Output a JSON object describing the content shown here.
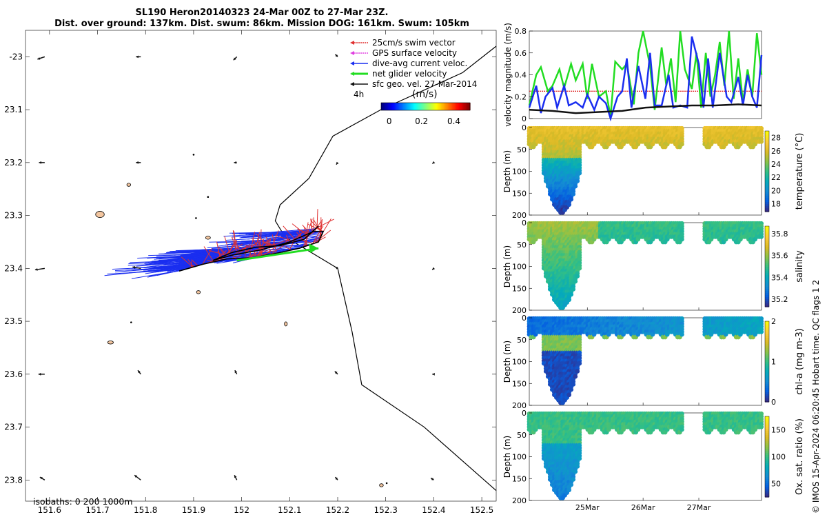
{
  "header": {
    "title_line1": "SL190 Heron20140323 24-Mar 00Z to 27-Mar 23Z.",
    "title_line2": "Dist. over ground: 137km. Dist. swum: 86km. Mission DOG: 161km. Swum: 105km"
  },
  "credit": "© IMOS 15-Apr-2024 06:20:45 Hobart time. QC flags 1  2",
  "colors": {
    "swim": "#e03030",
    "gps": "#e040e0",
    "current": "#1a2ef0",
    "net": "#22dd22",
    "geo": "#111111",
    "island": "#f3c6a0",
    "land": "#000000"
  },
  "chart_data": [
    {
      "type": "map",
      "name": "track-map",
      "xlim": [
        151.55,
        152.53
      ],
      "ylim": [
        -23.84,
        -22.95
      ],
      "xticks": [
        151.6,
        151.7,
        151.8,
        151.9,
        152,
        152.1,
        152.2,
        152.3,
        152.4,
        152.5
      ],
      "xtick_labels": [
        "151.6",
        "151.7",
        "151.8",
        "151.9",
        "152",
        "152.1",
        "152.2",
        "152.3",
        "152.4",
        "152.5"
      ],
      "yticks": [
        -23,
        -23.1,
        -23.2,
        -23.3,
        -23.4,
        -23.5,
        -23.6,
        -23.7,
        -23.8
      ],
      "ytick_labels": [
        "-23",
        "23.1",
        "23.2",
        "23.3",
        "23.4",
        "23.5",
        "23.6",
        "23.7",
        "23.8"
      ],
      "legend": {
        "position": "top-right",
        "entries": [
          {
            "label": "25cm/s swim vector",
            "color_key": "swim"
          },
          {
            "label": "GPS surface velocity",
            "color_key": "gps"
          },
          {
            "label": "dive-avg current veloc.",
            "color_key": "current"
          },
          {
            "label": "net glider velocity",
            "color_key": "net"
          },
          {
            "label": "sfc geo. vel. 27-Mar-2014",
            "color_key": "geo"
          }
        ],
        "interval": "4h"
      },
      "colorbar": {
        "label": "(m/s)",
        "ticks": [
          0,
          0.2,
          0.4
        ],
        "tick_labels": [
          "0",
          "0.2",
          "0.4"
        ],
        "range": [
          -0.05,
          0.5
        ]
      },
      "isobath_label": "isobaths: 0   200  1000m",
      "boundary": [
        [
          152.53,
          -22.98
        ],
        [
          152.46,
          -23.03
        ],
        [
          152.29,
          -23.1
        ],
        [
          152.19,
          -23.15
        ],
        [
          152.14,
          -23.23
        ],
        [
          152.08,
          -23.28
        ],
        [
          152.07,
          -23.31
        ],
        [
          152.09,
          -23.34
        ],
        [
          152.2,
          -23.4
        ],
        [
          152.23,
          -23.52
        ],
        [
          152.25,
          -23.62
        ],
        [
          152.38,
          -23.7
        ],
        [
          152.53,
          -23.82
        ]
      ],
      "track": [
        [
          151.87,
          -23.405
        ],
        [
          151.92,
          -23.392
        ],
        [
          151.97,
          -23.382
        ],
        [
          152.02,
          -23.38
        ],
        [
          152.07,
          -23.372
        ],
        [
          152.12,
          -23.362
        ],
        [
          152.16,
          -23.35
        ],
        [
          152.17,
          -23.33
        ],
        [
          152.15,
          -23.33
        ],
        [
          152.1,
          -23.35
        ],
        [
          152.04,
          -23.365
        ],
        [
          151.98,
          -23.375
        ],
        [
          151.94,
          -23.385
        ],
        [
          151.98,
          -23.37
        ],
        [
          152.03,
          -23.36
        ],
        [
          152.08,
          -23.357
        ],
        [
          152.13,
          -23.345
        ],
        [
          152.16,
          -23.32
        ]
      ],
      "net_velocity": {
        "from": [
          151.99,
          -23.385
        ],
        "to": [
          152.16,
          -23.362
        ]
      },
      "geo_vectors": [
        {
          "lon": 151.59,
          "lat": -23.0,
          "u": -0.15,
          "v": -0.05
        },
        {
          "lon": 151.79,
          "lat": -23.0,
          "u": -0.1,
          "v": 0.0
        },
        {
          "lon": 151.99,
          "lat": -23.0,
          "u": -0.07,
          "v": -0.07
        },
        {
          "lon": 152.2,
          "lat": -23.0,
          "u": -0.05,
          "v": 0.05
        },
        {
          "lon": 151.59,
          "lat": -23.2,
          "u": -0.12,
          "v": 0.0
        },
        {
          "lon": 151.79,
          "lat": -23.2,
          "u": -0.1,
          "v": 0.0
        },
        {
          "lon": 151.99,
          "lat": -23.2,
          "u": -0.06,
          "v": 0.0
        },
        {
          "lon": 152.2,
          "lat": -23.2,
          "u": -0.03,
          "v": -0.04
        },
        {
          "lon": 152.4,
          "lat": -23.2,
          "u": -0.03,
          "v": -0.02
        },
        {
          "lon": 151.59,
          "lat": -23.4,
          "u": -0.2,
          "v": -0.03
        },
        {
          "lon": 151.79,
          "lat": -23.4,
          "u": -0.17,
          "v": 0.03
        },
        {
          "lon": 152.2,
          "lat": -23.4,
          "u": -0.05,
          "v": 0.03
        },
        {
          "lon": 152.4,
          "lat": -23.4,
          "u": -0.03,
          "v": -0.03
        },
        {
          "lon": 151.59,
          "lat": -23.6,
          "u": -0.13,
          "v": 0.0
        },
        {
          "lon": 151.79,
          "lat": -23.6,
          "u": -0.06,
          "v": 0.08
        },
        {
          "lon": 151.99,
          "lat": -23.6,
          "u": -0.04,
          "v": 0.08
        },
        {
          "lon": 152.2,
          "lat": -23.6,
          "u": -0.06,
          "v": 0.06
        },
        {
          "lon": 152.4,
          "lat": -23.6,
          "u": -0.03,
          "v": 0.0
        },
        {
          "lon": 151.59,
          "lat": -23.8,
          "u": -0.1,
          "v": 0.06
        },
        {
          "lon": 151.79,
          "lat": -23.8,
          "u": -0.13,
          "v": 0.1
        },
        {
          "lon": 151.99,
          "lat": -23.8,
          "u": -0.05,
          "v": 0.1
        },
        {
          "lon": 152.2,
          "lat": -23.8,
          "u": -0.05,
          "v": 0.06
        },
        {
          "lon": 152.4,
          "lat": -23.8,
          "u": -0.06,
          "v": 0.04
        }
      ],
      "islands": [
        {
          "lon": 151.705,
          "lat": -23.298,
          "rx": 0.009,
          "ry": 0.006
        },
        {
          "lon": 151.727,
          "lat": -23.54,
          "rx": 0.006,
          "ry": 0.003
        },
        {
          "lon": 151.765,
          "lat": -23.242,
          "rx": 0.004,
          "ry": 0.003
        },
        {
          "lon": 151.93,
          "lat": -23.342,
          "rx": 0.005,
          "ry": 0.003
        },
        {
          "lon": 151.91,
          "lat": -23.445,
          "rx": 0.004,
          "ry": 0.003
        },
        {
          "lon": 152.092,
          "lat": -23.505,
          "rx": 0.003,
          "ry": 0.004
        },
        {
          "lon": 152.291,
          "lat": -23.81,
          "rx": 0.004,
          "ry": 0.003
        }
      ],
      "reef_dots": [
        [
          151.9,
          -23.185
        ],
        [
          151.93,
          -23.265
        ],
        [
          151.905,
          -23.305
        ],
        [
          151.77,
          -23.502
        ],
        [
          152.302,
          -23.806
        ]
      ]
    },
    {
      "type": "line",
      "name": "velocity-magnitude",
      "ylabel": "velocity magnitude (m/s)",
      "xlim": [
        0,
        100
      ],
      "ylim": [
        0,
        0.8
      ],
      "yticks": [
        0,
        0.2,
        0.4,
        0.6,
        0.8
      ],
      "ytick_labels": [
        "0",
        "0.2",
        "0.4",
        "0.6",
        "0.8"
      ],
      "series": [
        {
          "name": "swim",
          "color_key": "swim",
          "dashed": true,
          "x": [
            0,
            100
          ],
          "y": [
            0.25,
            0.25
          ]
        },
        {
          "name": "net glider velocity",
          "color_key": "net",
          "x": [
            0,
            3,
            5,
            8,
            10,
            13,
            15,
            18,
            20,
            23,
            25,
            27,
            30,
            33,
            35,
            37,
            40,
            42,
            45,
            47,
            49,
            52,
            54,
            57,
            59,
            61,
            63,
            65,
            67,
            70,
            72,
            74,
            76,
            78,
            80,
            82,
            84,
            86,
            88,
            90,
            92,
            94,
            96,
            98,
            100
          ],
          "y": [
            0.12,
            0.4,
            0.47,
            0.25,
            0.3,
            0.45,
            0.28,
            0.5,
            0.35,
            0.5,
            0.18,
            0.5,
            0.2,
            0.25,
            0.02,
            0.52,
            0.45,
            0.5,
            0.13,
            0.6,
            0.8,
            0.48,
            0.08,
            0.65,
            0.3,
            0.55,
            0.15,
            0.8,
            0.45,
            0.27,
            0.6,
            0.1,
            0.6,
            0.2,
            0.4,
            0.7,
            0.3,
            0.8,
            0.18,
            0.55,
            0.15,
            0.45,
            0.2,
            0.78,
            0.4
          ]
        },
        {
          "name": "dive-avg current",
          "color_key": "current",
          "x": [
            0,
            3,
            5,
            7,
            10,
            12,
            15,
            17,
            20,
            23,
            25,
            28,
            30,
            33,
            35,
            38,
            40,
            42,
            44,
            47,
            50,
            52,
            54,
            57,
            60,
            62,
            65,
            68,
            70,
            73,
            75,
            77,
            79,
            82,
            85,
            87,
            90,
            92,
            94,
            96,
            98,
            100
          ],
          "y": [
            0.1,
            0.3,
            0.05,
            0.2,
            0.28,
            0.1,
            0.3,
            0.12,
            0.15,
            0.1,
            0.22,
            0.08,
            0.2,
            0.14,
            0.0,
            0.2,
            0.25,
            0.55,
            0.1,
            0.48,
            0.18,
            0.6,
            0.12,
            0.12,
            0.4,
            0.1,
            0.12,
            0.1,
            0.75,
            0.5,
            0.1,
            0.55,
            0.1,
            0.6,
            0.2,
            0.15,
            0.38,
            0.12,
            0.4,
            0.2,
            0.1,
            0.58
          ]
        },
        {
          "name": "sfc geo. vel.",
          "color_key": "geo",
          "x": [
            0,
            10,
            20,
            30,
            40,
            50,
            60,
            70,
            80,
            90,
            100
          ],
          "y": [
            0.08,
            0.07,
            0.05,
            0.06,
            0.07,
            0.1,
            0.11,
            0.12,
            0.12,
            0.13,
            0.12
          ]
        }
      ]
    },
    {
      "type": "section",
      "name": "temperature-section",
      "ylabel": "Depth (m)",
      "cbar_label": "temperature (°C)",
      "clim": [
        16.8,
        29
      ],
      "cticks": [
        18,
        20,
        22,
        24,
        26,
        28
      ],
      "ctick_labels": [
        "18",
        "20",
        "22",
        "24",
        "26",
        "28"
      ],
      "colormap": "parula",
      "yticks": [
        0,
        50,
        100,
        150,
        200
      ],
      "ytick_labels": [
        "0",
        "50",
        "100",
        "150",
        "200"
      ],
      "surface": 26.5,
      "deep_low": 17.5,
      "gap": [
        66,
        75
      ]
    },
    {
      "type": "section",
      "name": "salinity-section",
      "ylabel": "Depth (m)",
      "cbar_label": "salinity",
      "clim": [
        35.13,
        35.87
      ],
      "cticks": [
        35.2,
        35.4,
        35.6,
        35.8
      ],
      "ctick_labels": [
        "35.2",
        "35.4",
        "35.6",
        "35.8"
      ],
      "colormap": "parula",
      "yticks": [
        0,
        50,
        100,
        150,
        200
      ],
      "ytick_labels": [
        "0",
        "50",
        "100",
        "150",
        "200"
      ],
      "surface": 35.55,
      "deep_low": 35.35,
      "gap": [
        66,
        75
      ]
    },
    {
      "type": "section",
      "name": "chl-section",
      "ylabel": "Depth (m)",
      "cbar_label": "chl-a (mg m-3)",
      "clim": [
        0,
        2
      ],
      "cticks": [
        0,
        1,
        2
      ],
      "ctick_labels": [
        "0",
        "1",
        "2"
      ],
      "colormap": "parula",
      "yticks": [
        0,
        50,
        100,
        150,
        200
      ],
      "ytick_labels": [
        "0",
        "50",
        "100",
        "150",
        "200"
      ],
      "surface": 0.4,
      "deep_low": 0.1,
      "gap": [
        66,
        75
      ]
    },
    {
      "type": "section",
      "name": "oxygen-section",
      "ylabel": "Depth (m)",
      "cbar_label": "Ox. sat. ratio (%)",
      "clim": [
        25,
        175
      ],
      "cticks": [
        50,
        100,
        150
      ],
      "ctick_labels": [
        "50",
        "100",
        "150"
      ],
      "colormap": "parula",
      "yticks": [
        0,
        50,
        100,
        150,
        200
      ],
      "ytick_labels": [
        "0",
        "50",
        "100",
        "150",
        "200"
      ],
      "surface": 100,
      "deep_low": 80,
      "gap": [
        66,
        75
      ]
    }
  ],
  "time_axis": {
    "ticks": [
      25,
      49,
      73
    ],
    "tick_labels": [
      "25Mar",
      "26Mar",
      "27Mar"
    ]
  }
}
